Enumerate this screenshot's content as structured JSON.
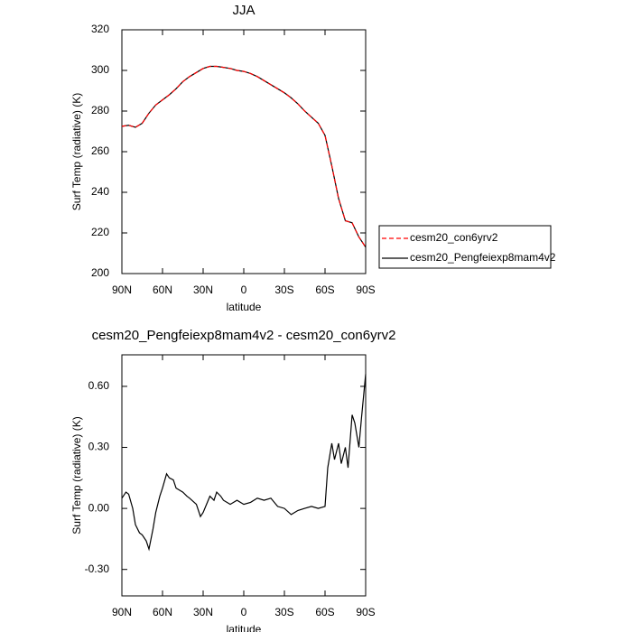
{
  "chart_data": [
    {
      "type": "line",
      "title": "JJA",
      "xlabel": "latitude",
      "ylabel": "Surf Temp (radiative) (K)",
      "x": [
        90,
        85,
        80,
        75,
        70,
        65,
        60,
        55,
        50,
        45,
        40,
        35,
        30,
        25,
        20,
        15,
        10,
        5,
        0,
        -5,
        -10,
        -15,
        -20,
        -25,
        -30,
        -35,
        -40,
        -45,
        -50,
        -55,
        -60,
        -65,
        -70,
        -75,
        -80,
        -85,
        -90
      ],
      "xlim": [
        90,
        -90
      ],
      "xticks": [
        {
          "value": 90,
          "label": "90N"
        },
        {
          "value": 60,
          "label": "60N"
        },
        {
          "value": 30,
          "label": "30N"
        },
        0,
        {
          "value": -30,
          "label": "30S"
        },
        {
          "value": -60,
          "label": "60S"
        },
        {
          "value": -90,
          "label": "90S"
        }
      ],
      "ylim": [
        200,
        320
      ],
      "yticks": [
        200,
        220,
        240,
        260,
        280,
        300,
        320
      ],
      "legend": "outside-right",
      "series": [
        {
          "name": "cesm20_con6yrv2",
          "color": "#ff0000",
          "dashed": true,
          "values": [
            272.5,
            273,
            272,
            274,
            279,
            283,
            285.5,
            288,
            291,
            294.5,
            297,
            299,
            301,
            302,
            302,
            301.5,
            301,
            300,
            299.5,
            298.5,
            297,
            295,
            293,
            291,
            289,
            286.5,
            283.5,
            280,
            277,
            274,
            268,
            253,
            237,
            226,
            225,
            218,
            213
          ]
        },
        {
          "name": "cesm20_Pengfeiexp8mam4v2",
          "color": "#000000",
          "dashed": false,
          "values": [
            272.5,
            273,
            272,
            274,
            279,
            283,
            285.5,
            288,
            291,
            294.5,
            297,
            299,
            301,
            302,
            302,
            301.5,
            301,
            300,
            299.5,
            298.5,
            297,
            295,
            293,
            291,
            289,
            286.5,
            283.5,
            280,
            277,
            274,
            268,
            253,
            237,
            226,
            225,
            218,
            213
          ]
        }
      ]
    },
    {
      "type": "line",
      "title": "cesm20_Pengfeiexp8mam4v2 - cesm20_con6yrv2",
      "xlabel": "latitude",
      "ylabel": "Surf Temp (radiative) (K)",
      "x": [
        90,
        87,
        85,
        82,
        80,
        77,
        75,
        72,
        70,
        67,
        65,
        62,
        60,
        57,
        55,
        52,
        50,
        45,
        42,
        40,
        35,
        32,
        30,
        25,
        22,
        20,
        17,
        15,
        10,
        5,
        0,
        -5,
        -10,
        -15,
        -20,
        -25,
        -30,
        -35,
        -40,
        -45,
        -50,
        -55,
        -60,
        -62,
        -65,
        -67,
        -70,
        -72,
        -75,
        -77,
        -80,
        -82,
        -85,
        -87,
        -90
      ],
      "xlim": [
        90,
        -90
      ],
      "xticks": [
        {
          "value": 90,
          "label": "90N"
        },
        {
          "value": 60,
          "label": "60N"
        },
        {
          "value": 30,
          "label": "30N"
        },
        0,
        {
          "value": -30,
          "label": "30S"
        },
        {
          "value": -60,
          "label": "60S"
        },
        {
          "value": -90,
          "label": "90S"
        }
      ],
      "ylim": [
        -0.43,
        0.755
      ],
      "yticks": [
        {
          "value": -0.3,
          "label": "-0.30"
        },
        {
          "value": 0,
          "label": "0.00"
        },
        {
          "value": 0.3,
          "label": "0.30"
        },
        {
          "value": 0.6,
          "label": "0.60"
        }
      ],
      "series": [
        {
          "color": "#000000",
          "dashed": false,
          "values": [
            0.05,
            0.08,
            0.07,
            0.0,
            -0.08,
            -0.12,
            -0.13,
            -0.16,
            -0.2,
            -0.1,
            -0.02,
            0.06,
            0.1,
            0.17,
            0.15,
            0.14,
            0.1,
            0.08,
            0.06,
            0.05,
            0.02,
            -0.04,
            -0.02,
            0.06,
            0.04,
            0.08,
            0.06,
            0.04,
            0.02,
            0.04,
            0.02,
            0.03,
            0.05,
            0.04,
            0.05,
            0.01,
            0.0,
            -0.03,
            -0.01,
            0.0,
            0.01,
            0.0,
            0.01,
            0.2,
            0.32,
            0.24,
            0.32,
            0.22,
            0.3,
            0.2,
            0.46,
            0.42,
            0.3,
            0.45,
            0.66
          ]
        }
      ]
    }
  ]
}
